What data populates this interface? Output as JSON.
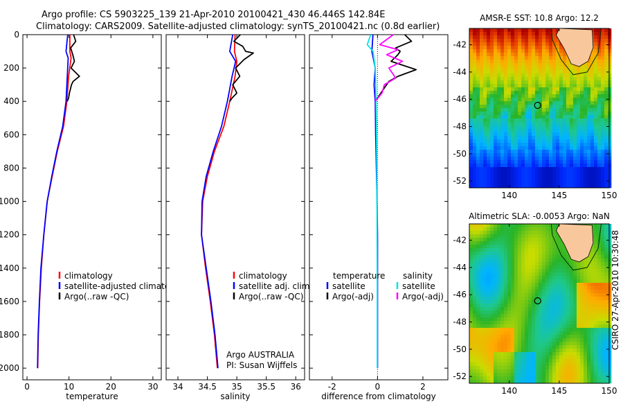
{
  "figure": {
    "title_line1": "Argo profile: CS 5903225_139 21-Apr-2010 20100421_430 46.446S 142.84E",
    "title_line2": "Climatology: CARS2009. Satellite-adjusted climatology: synTS_20100421.nc (0.8d earlier)",
    "side_label": "CSIRO 27-Apr-2010 10:30:48",
    "colors": {
      "climatology": "#ff0000",
      "satellite": "#0000ff",
      "argo": "#000000",
      "sal_satellite": "#00e5e5",
      "sal_argo": "#ff00ff",
      "land": "#f8c79c"
    }
  },
  "chart_data": [
    {
      "type": "line",
      "id": "temperature",
      "xlabel": "temperature",
      "ylabel": "",
      "xlim": [
        -1,
        32
      ],
      "ylim": [
        2070,
        0
      ],
      "x_ticks": [
        "0",
        "10",
        "20",
        "30"
      ],
      "y_ticks": [
        "0",
        "200",
        "400",
        "600",
        "800",
        "1000",
        "1200",
        "1400",
        "1600",
        "1800",
        "2000"
      ],
      "legend": [
        "climatology",
        "satellite-adjusted climatology",
        "Argo(..raw -QC)"
      ],
      "series": [
        {
          "name": "climatology",
          "color": "#ff0000",
          "x": [
            10.2,
            10.2,
            10.5,
            9.9,
            9.5,
            8.7,
            7.2,
            6.0,
            4.8,
            4.0,
            3.4,
            3.0,
            2.7,
            2.55
          ],
          "y": [
            0,
            100,
            140,
            250,
            400,
            550,
            700,
            850,
            1000,
            1200,
            1400,
            1600,
            1800,
            2000
          ]
        },
        {
          "name": "satellite",
          "color": "#0000ff",
          "x": [
            9.7,
            9.3,
            9.8,
            9.6,
            9.3,
            8.5,
            7.1,
            5.9,
            4.8,
            4.0,
            3.3,
            2.95,
            2.65,
            2.5
          ],
          "y": [
            0,
            100,
            140,
            250,
            400,
            550,
            700,
            850,
            1000,
            1200,
            1400,
            1600,
            1800,
            2000
          ]
        },
        {
          "name": "Argo",
          "color": "#000000",
          "x": [
            11.1,
            11.6,
            10.4,
            10.9,
            11.3,
            10.5,
            12.5,
            11.0,
            10.6,
            10.1,
            9.9,
            9.6
          ],
          "y": [
            0,
            40,
            80,
            120,
            160,
            200,
            250,
            280,
            300,
            350,
            380,
            400
          ]
        }
      ]
    },
    {
      "type": "line",
      "id": "salinity",
      "xlabel": "salinity",
      "xlim": [
        33.8,
        36.15
      ],
      "ylim": [
        2070,
        0
      ],
      "x_ticks": [
        "34",
        "34.5",
        "35",
        "35.5",
        "36"
      ],
      "legend": [
        "climatology",
        "satellite adj. clim.",
        "Argo(..raw -QC)"
      ],
      "annotation": [
        "Argo AUSTRALIA",
        "PI: Susan Wijffels"
      ],
      "series": [
        {
          "name": "climatology",
          "color": "#ff0000",
          "x": [
            34.97,
            34.96,
            35.0,
            34.97,
            34.88,
            34.78,
            34.62,
            34.5,
            34.42,
            34.4,
            34.47,
            34.55,
            34.62,
            34.67
          ],
          "y": [
            0,
            100,
            160,
            250,
            400,
            550,
            700,
            850,
            1000,
            1200,
            1400,
            1600,
            1800,
            2000
          ]
        },
        {
          "name": "satellite",
          "color": "#0000ff",
          "x": [
            34.93,
            34.88,
            34.98,
            34.92,
            34.84,
            34.74,
            34.6,
            34.48,
            34.41,
            34.4,
            34.48,
            34.56,
            34.63,
            34.68
          ],
          "y": [
            0,
            100,
            160,
            250,
            400,
            550,
            700,
            850,
            1000,
            1200,
            1400,
            1600,
            1800,
            2000
          ]
        },
        {
          "name": "Argo",
          "color": "#000000",
          "x": [
            35.06,
            34.95,
            35.1,
            35.15,
            35.28,
            35.12,
            34.98,
            35.05,
            34.93,
            35.0,
            34.92,
            34.88
          ],
          "y": [
            0,
            40,
            70,
            100,
            110,
            150,
            200,
            250,
            300,
            350,
            380,
            400
          ]
        }
      ]
    },
    {
      "type": "line",
      "id": "difference",
      "xlabel": "difference from climatology",
      "xlim": [
        -3,
        3.1
      ],
      "ylim": [
        2070,
        0
      ],
      "x_ticks": [
        "-2",
        "0",
        "2"
      ],
      "legend_left_title": "temperature",
      "legend_right_title": "salinity",
      "legend_left": [
        "satellite",
        "Argo(-adj)"
      ],
      "legend_right": [
        "satellite",
        "Argo(-adj)"
      ],
      "series": [
        {
          "name": "temp satellite",
          "color": "#0000ff",
          "x": [
            -0.2,
            -0.25,
            -0.1,
            -0.15,
            -0.1,
            -0.08,
            -0.05,
            -0.02,
            0.0,
            0.0,
            0.0,
            0.0
          ],
          "y": [
            0,
            100,
            200,
            300,
            400,
            600,
            800,
            1000,
            1200,
            1500,
            1800,
            2000
          ]
        },
        {
          "name": "temp Argo",
          "color": "#000000",
          "x": [
            1.2,
            1.5,
            0.8,
            1.0,
            0.9,
            0.6,
            1.7,
            0.9,
            0.5,
            0.3,
            0.1,
            -0.1
          ],
          "y": [
            0,
            40,
            80,
            100,
            120,
            160,
            210,
            250,
            280,
            320,
            360,
            400
          ]
        },
        {
          "name": "sal satellite",
          "color": "#00e5e5",
          "x": [
            -0.3,
            -0.45,
            -0.2,
            -0.1,
            -0.08,
            -0.05,
            -0.03,
            -0.02,
            -0.01,
            -0.01
          ],
          "y": [
            0,
            60,
            100,
            200,
            300,
            500,
            800,
            1100,
            1500,
            2000
          ]
        },
        {
          "name": "sal Argo",
          "color": "#ff00ff",
          "x": [
            0.7,
            0.1,
            0.9,
            0.4,
            1.1,
            0.5,
            0.8,
            0.3,
            0.2,
            -0.1
          ],
          "y": [
            0,
            60,
            90,
            120,
            160,
            200,
            260,
            300,
            350,
            400
          ]
        }
      ]
    },
    {
      "type": "heatmap",
      "id": "sst_map",
      "title": "AMSR-E SST: 10.8 Argo: 12.2",
      "xlim": [
        136,
        150
      ],
      "ylim": [
        -52.5,
        -40.8
      ],
      "x_ticks": [
        "140",
        "145",
        "150"
      ],
      "y_ticks": [
        "-42",
        "-44",
        "-46",
        "-48",
        "-50",
        "-52"
      ],
      "argo_position": {
        "lon": 142.84,
        "lat": -46.446
      }
    },
    {
      "type": "heatmap",
      "id": "sla_map",
      "title": "Altimetric SLA: -0.0053 Argo: NaN",
      "xlim": [
        136,
        150
      ],
      "ylim": [
        -52.5,
        -40.8
      ],
      "x_ticks": [
        "140",
        "145",
        "150"
      ],
      "y_ticks": [
        "-42",
        "-44",
        "-46",
        "-48",
        "-50",
        "-52"
      ],
      "argo_position": {
        "lon": 142.84,
        "lat": -46.446
      }
    }
  ]
}
